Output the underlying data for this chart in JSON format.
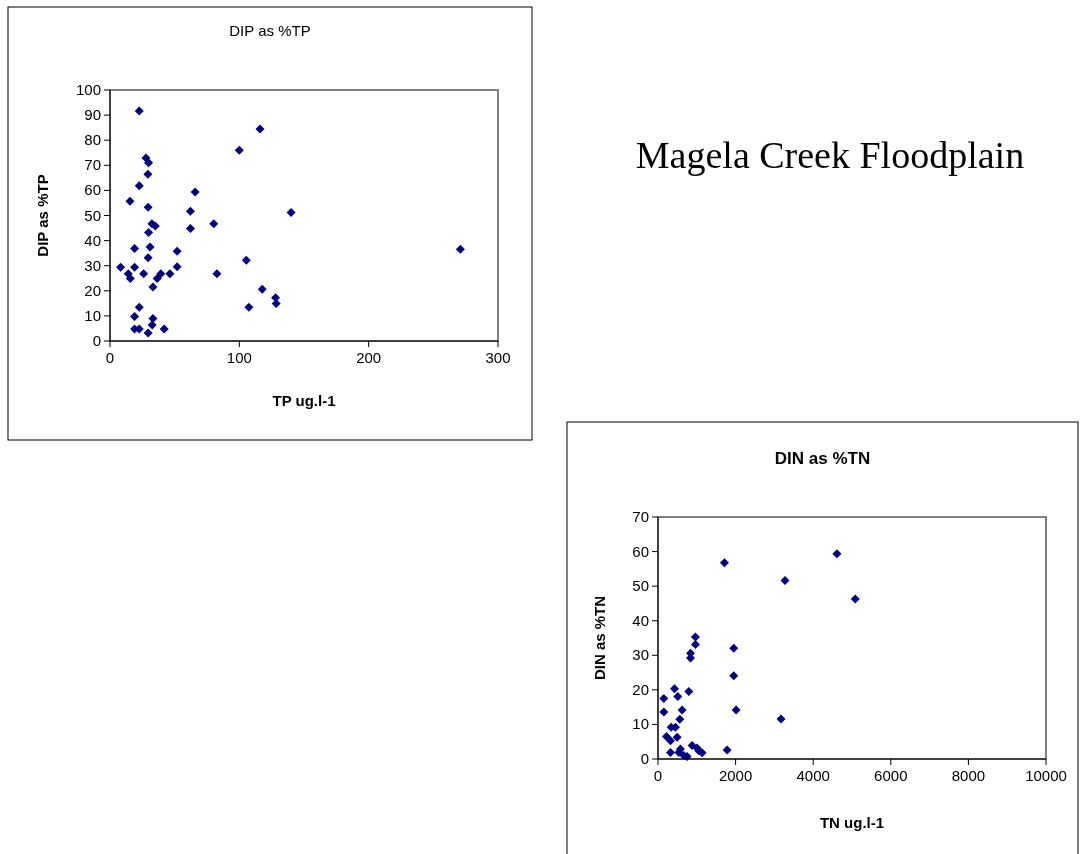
{
  "chart_data": [
    {
      "type": "scatter",
      "title": "DIP as %TP",
      "xlabel": "TP ug.l-1",
      "ylabel": "DIP as %TP",
      "color": "#000080",
      "marker": "diamond",
      "xlim": [
        0,
        300
      ],
      "ylim": [
        0,
        100
      ],
      "xticks": [
        0,
        100,
        200,
        300
      ],
      "yticks": [
        0,
        10,
        20,
        30,
        40,
        50,
        60,
        70,
        80,
        90,
        100
      ],
      "x": [
        22.6,
        116,
        100,
        27.8,
        29.8,
        29.3,
        22.6,
        65.8,
        15.4,
        29.5,
        62.2,
        140,
        32.4,
        35,
        80.2,
        62.2,
        29.8,
        19,
        31,
        51.9,
        29.5,
        105.4,
        8.2,
        19,
        51.9,
        14.1,
        26,
        82.7,
        46.3,
        39.3,
        15.7,
        36.5,
        33.2,
        117.7,
        128,
        128.5,
        107.4,
        22.6,
        19,
        33.2,
        32.6,
        19,
        22.6,
        29.5,
        41.9,
        270.9
      ],
      "values": [
        91.6,
        84.5,
        76,
        72.9,
        71,
        66.4,
        61.9,
        59.4,
        55.7,
        53.3,
        51.7,
        51.2,
        46.7,
        45.8,
        46.7,
        44.8,
        43.2,
        36.9,
        37.5,
        35.8,
        33.2,
        32.2,
        29.4,
        29.4,
        29.6,
        26.8,
        26.8,
        26.8,
        26.8,
        26.8,
        24.9,
        24.9,
        21.5,
        20.6,
        17.2,
        14.9,
        13.4,
        13.4,
        9.8,
        9,
        6.4,
        4.8,
        4.8,
        3.2,
        4.8,
        36.6
      ]
    },
    {
      "type": "other",
      "title": "Magela Creek Floodplain"
    },
    {
      "type": "scatter",
      "title": "DIN as %TN",
      "xlabel": "TN ug.l-1",
      "ylabel": "DIN as %TN",
      "color": "#000080",
      "marker": "diamond",
      "xlim": [
        0,
        10000
      ],
      "ylim": [
        0,
        70
      ],
      "xticks": [
        0,
        2000,
        4000,
        6000,
        8000,
        10000
      ],
      "yticks": [
        0,
        10,
        20,
        30,
        40,
        50,
        60,
        70
      ],
      "x": [
        1712,
        3274,
        4612,
        5084,
        965,
        965,
        837,
        837,
        1952,
        1952,
        425,
        794,
        510,
        150,
        622,
        2013,
        150,
        562,
        3171,
        339,
        450,
        219,
        493,
        322,
        1781,
        579,
        880,
        1009,
        1137,
        665,
        750,
        536,
        322,
        1052
      ],
      "values": [
        56.8,
        51.6,
        59.4,
        46.3,
        35.3,
        33.1,
        30.6,
        29.2,
        32,
        24.1,
        20.3,
        19.5,
        18.1,
        17.5,
        14.2,
        14.2,
        13.6,
        11.5,
        11.6,
        9.2,
        9.2,
        6.5,
        6.3,
        5.3,
        2.6,
        2.9,
        3.9,
        3.2,
        1.8,
        1,
        0.7,
        1.9,
        1.9,
        2.4
      ]
    }
  ]
}
